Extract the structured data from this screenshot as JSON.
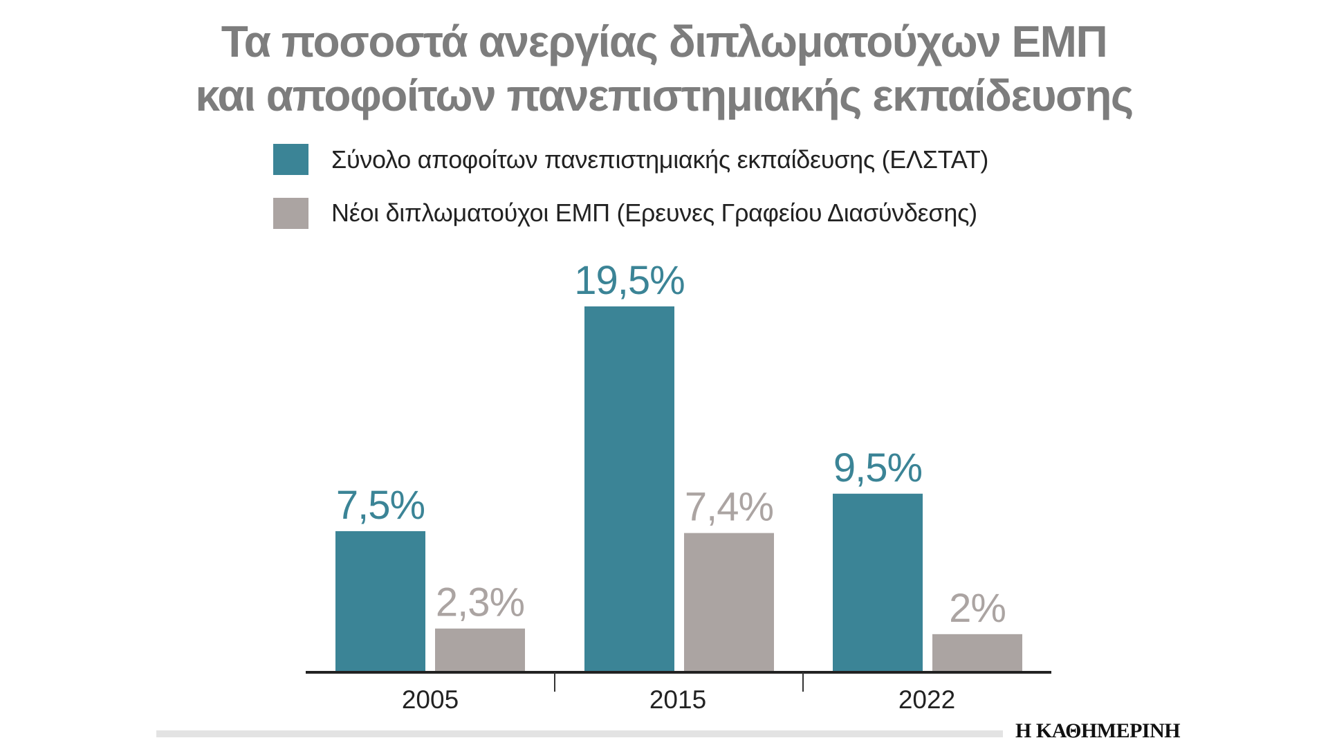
{
  "chart_data": {
    "type": "bar",
    "title": "Τα ποσοστά ανεργίας διπλωματούχων ΕΜΠ",
    "subtitle": "και αποφοίτων πανεπιστημιακής εκπαίδευσης",
    "categories": [
      "2005",
      "2015",
      "2022"
    ],
    "series": [
      {
        "name": "Σύνολο αποφοίτων πανεπιστημιακής εκπαίδευσης (ΕΛΣΤΑΤ)",
        "values": [
          7.5,
          19.5,
          9.5
        ],
        "labels": [
          "7,5%",
          "19,5%",
          "9,5%"
        ],
        "color": "#3b8496"
      },
      {
        "name": "Νέοι διπλωματούχοι ΕΜΠ (Ερευνες Γραφείου Διασύνδεσης)",
        "values": [
          2.3,
          7.4,
          2.0
        ],
        "labels": [
          "2,3%",
          "7,4%",
          "2%"
        ],
        "color": "#aba4a2"
      }
    ],
    "ylim": [
      0,
      20
    ],
    "grid": false,
    "legend": "top"
  },
  "source_logo": "Η ΚΑΘΗΜΕΡΙΝΗ"
}
